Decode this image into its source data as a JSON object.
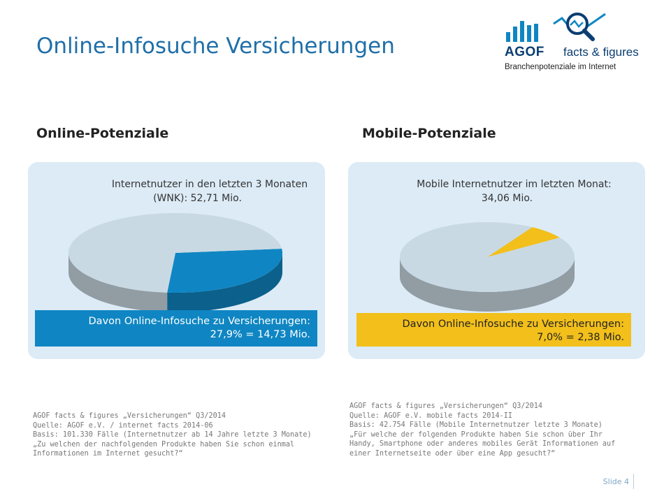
{
  "title": "Online-Infosuche Versicherungen",
  "logo": {
    "brand": "AGOF",
    "tagline": "facts & figures",
    "subtitle": "Branchenpotenziale im Internet",
    "icon": "bar-chart-magnifier-icon"
  },
  "sections": {
    "online_heading": "Online-Potenziale",
    "mobile_heading": "Mobile-Potenziale"
  },
  "online": {
    "base_line1": "Internetnutzer in den letzten 3 Monaten",
    "base_line2": "(WNK): 52,71 Mio.",
    "callout_line1": "Davon Online-Infosuche zu Versicherungen:",
    "callout_line2": "27,9% = 14,73 Mio.",
    "source": "AGOF facts & figures „Versicherungen“ Q3/2014\nQuelle: AGOF e.V. / internet facts 2014-06\nBasis: 101.330 Fälle (Internetnutzer ab 14 Jahre letzte 3 Monate)\n„Zu welchen der nachfolgenden Produkte haben Sie schon einmal\nInformationen im Internet gesucht?“"
  },
  "mobile": {
    "base_line1": "Mobile Internetnutzer im letzten Monat:",
    "base_line2": "34,06 Mio.",
    "callout_line1": "Davon Online-Infosuche zu Versicherungen:",
    "callout_line2": "7,0% = 2,38 Mio.",
    "source": "AGOF facts & figures „Versicherungen“ Q3/2014\nQuelle: AGOF e.V. mobile facts 2014-II\nBasis: 42.754 Fälle (Mobile Internetnutzer letzte 3 Monate)\n„Für welche der folgenden Produkte haben Sie schon über Ihr\nHandy, Smartphone oder anderes mobiles Gerät Informationen auf\neiner Internetseite oder über eine App gesucht?“"
  },
  "footer": {
    "slide": "Slide 4"
  },
  "colors": {
    "title": "#1f6fa8",
    "panel_bg": "#dcebf6",
    "pie_rest": "#c9d9e3",
    "online_accent": "#0f86c3",
    "mobile_accent": "#f2bf1b"
  },
  "chart_data": [
    {
      "type": "pie",
      "title": "Online-Potenziale",
      "total_label": "Internetnutzer in den letzten 3 Monaten (WNK): 52,71 Mio.",
      "slices": [
        {
          "label": "Online-Infosuche zu Versicherungen",
          "value": 27.9,
          "absolute_mio": 14.73,
          "color": "#0f86c3"
        },
        {
          "label": "",
          "value": 72.1,
          "color": "#c9d9e3"
        }
      ]
    },
    {
      "type": "pie",
      "title": "Mobile-Potenziale",
      "total_label": "Mobile Internetnutzer im letzten Monat: 34,06 Mio.",
      "slices": [
        {
          "label": "Online-Infosuche zu Versicherungen",
          "value": 7.0,
          "absolute_mio": 2.38,
          "color": "#f2bf1b"
        },
        {
          "label": "",
          "value": 93.0,
          "color": "#c9d9e3"
        }
      ]
    }
  ]
}
